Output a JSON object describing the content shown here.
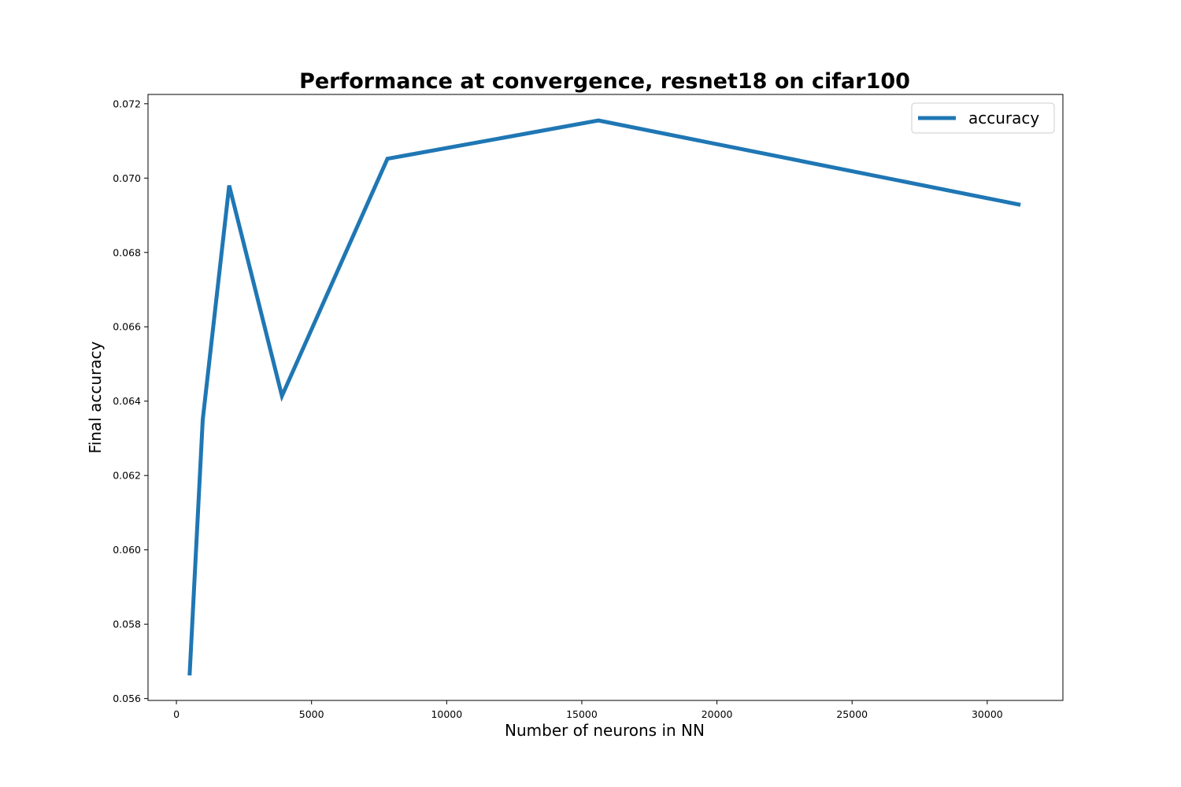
{
  "chart_data": {
    "type": "line",
    "title": "Performance at convergence, resnet18 on cifar100",
    "xlabel": "Number of neurons in NN",
    "ylabel": "Final accuracy",
    "xlim": [
      -1050,
      32800
    ],
    "ylim": [
      0.05595,
      0.07225
    ],
    "xticks": [
      0,
      5000,
      10000,
      15000,
      20000,
      25000,
      30000
    ],
    "xtick_labels": [
      "0",
      "5000",
      "10000",
      "15000",
      "20000",
      "25000",
      "30000"
    ],
    "yticks": [
      0.056,
      0.058,
      0.06,
      0.062,
      0.064,
      0.066,
      0.068,
      0.07,
      0.072
    ],
    "ytick_labels": [
      "0.056",
      "0.058",
      "0.060",
      "0.062",
      "0.064",
      "0.066",
      "0.068",
      "0.070",
      "0.072"
    ],
    "grid": false,
    "legend_position": "top-right",
    "series": [
      {
        "name": "accuracy",
        "color": "#1f77b4",
        "x": [
          488,
          976,
          1952,
          3904,
          7808,
          15616,
          31232
        ],
        "y": [
          0.05662,
          0.0635,
          0.0698,
          0.06414,
          0.07052,
          0.07155,
          0.06928
        ]
      }
    ]
  }
}
